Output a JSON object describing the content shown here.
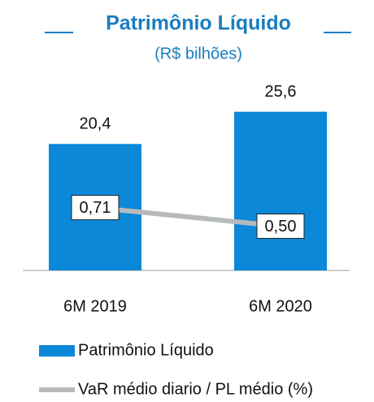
{
  "chart_data": {
    "type": "bar",
    "title": "Patrimônio Líquido",
    "subtitle": "(R$ bilhões)",
    "categories": [
      "6M 2019",
      "6M 2020"
    ],
    "series": [
      {
        "name": "Patrimônio Líquido",
        "color": "#0b88d8",
        "values": [
          20.4,
          25.6
        ],
        "value_labels": [
          "20,4",
          "25,6"
        ]
      },
      {
        "name": "VaR médio diario / PL médio (%)",
        "type": "line",
        "axis": "y2",
        "color": "#b6babd",
        "values": [
          0.71,
          0.5
        ],
        "value_labels": [
          "0,71",
          "0,50"
        ]
      }
    ],
    "ylim": [
      0,
      30
    ],
    "y2lim": [
      0,
      2.1
    ],
    "legend": "bottom"
  }
}
